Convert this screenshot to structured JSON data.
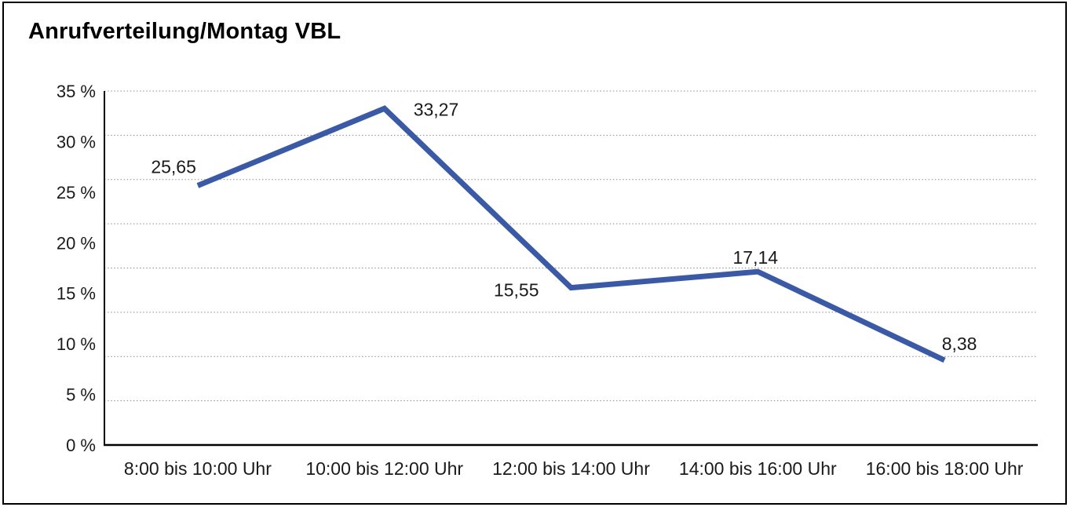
{
  "page": {
    "title": "Anrufverteilung/Montag VBL"
  },
  "chart_data": {
    "type": "line",
    "title": "Anrufverteilung/Montag VBL",
    "categories": [
      "8:00 bis 10:00 Uhr",
      "10:00 bis 12:00 Uhr",
      "12:00 bis 14:00 Uhr",
      "14:00 bis 16:00 Uhr",
      "16:00 bis 18:00 Uhr"
    ],
    "values": [
      25.65,
      33.27,
      15.55,
      17.14,
      8.38
    ],
    "point_labels": [
      "25,65",
      "33,27",
      "15,55",
      "17,14",
      "8,38"
    ],
    "y_ticks": [
      "0 %",
      "5 %",
      "10 %",
      "15 %",
      "20 %",
      "25 %",
      "30 %",
      "35 %"
    ],
    "ylim": [
      0,
      35
    ],
    "xlabel": "",
    "ylabel": "",
    "legend": "none",
    "grid": "horizontal-dotted",
    "line_color": "#3B5AA5",
    "axis_color": "#000000",
    "gridline_color": "#8c8c8c",
    "tick_label_color": "#1a1a1a"
  }
}
